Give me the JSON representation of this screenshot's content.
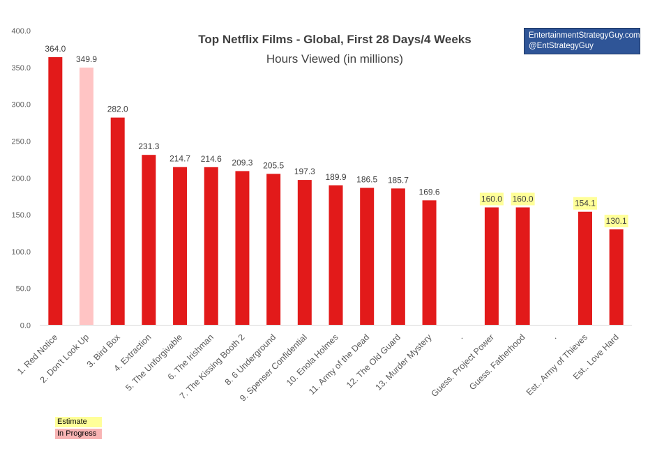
{
  "colors": {
    "bar": "#e21a1a",
    "in_progress_bar": "#ffc4c4",
    "estimate_highlight": "#ffff99",
    "axis": "#d9d9d9",
    "credit_box": "#2f5597"
  },
  "credit": {
    "line1": "EntertainmentStrategyGuy.com",
    "line2": "@EntStrategyGuy"
  },
  "legend": {
    "estimate": "Estimate",
    "in_progress": "In Progress"
  },
  "chart_data": {
    "type": "bar",
    "title": "Top Netflix Films - Global, First 28 Days/4 Weeks",
    "subtitle": "Hours Viewed (in millions)",
    "xlabel": "",
    "ylabel": "",
    "ylim": [
      0,
      400
    ],
    "yticks": [
      "0.0",
      "50.0",
      "100.0",
      "150.0",
      "200.0",
      "250.0",
      "300.0",
      "350.0",
      "400.0"
    ],
    "grid": false,
    "categories": [
      "1. Red Notice",
      "2. Don't Look Up",
      "3. Bird Box",
      "4. Extraction",
      "5. The Unforgivable",
      "6. The Irishman",
      "7. The Kissing Booth 2",
      "8. 6 Underground",
      "9. Spenser Confidential",
      "10. Enola Holmes",
      "11. Army of the Dead",
      "12. The Old Guard",
      "13. Murder Mystery",
      ".",
      "Guess. Project Power",
      "Guess. Fatherhood",
      ".",
      "Est.. Army of Thieves",
      "Est.. Love Hard"
    ],
    "values": [
      364.0,
      349.9,
      282.0,
      231.3,
      214.7,
      214.6,
      209.3,
      205.5,
      197.3,
      189.9,
      186.5,
      185.7,
      169.6,
      null,
      160.0,
      160.0,
      null,
      154.1,
      130.1
    ],
    "labels": [
      "364.0",
      "349.9",
      "282.0",
      "231.3",
      "214.7",
      "214.6",
      "209.3",
      "205.5",
      "197.3",
      "189.9",
      "186.5",
      "185.7",
      "169.6",
      "",
      "160.0",
      "160.0",
      "",
      "154.1",
      "130.1"
    ],
    "status": [
      "final",
      "in_progress",
      "final",
      "final",
      "final",
      "final",
      "final",
      "final",
      "final",
      "final",
      "final",
      "final",
      "final",
      "none",
      "estimate",
      "estimate",
      "none",
      "estimate",
      "estimate"
    ]
  }
}
